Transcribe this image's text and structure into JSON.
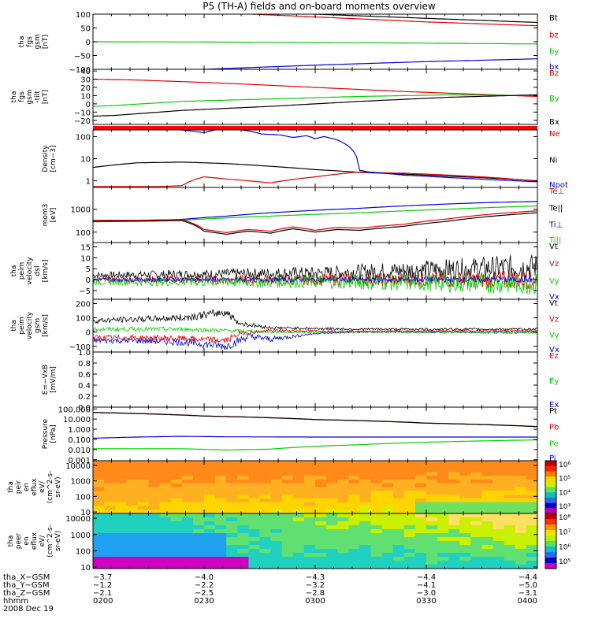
{
  "title": "P5 (TH-A) fields and on-board moments overview",
  "colors": {
    "black": "#000000",
    "red": "#e00000",
    "green": "#00d000",
    "blue": "#0000d8"
  },
  "chart_data": [
    {
      "type": "line",
      "id": "p1",
      "ylabels": [
        "tha",
        "fgs",
        "gsm",
        "[nT]"
      ],
      "ylim": [
        -100,
        100
      ],
      "yticks": [
        "100",
        "50",
        "0",
        "−50",
        "−100"
      ],
      "yvals": [
        100,
        50,
        0,
        -50,
        -100
      ],
      "legend": [
        "Bt",
        "bz",
        "by",
        "bx"
      ],
      "legend_colors": [
        "#000000",
        "#e00000",
        "#00d000",
        "#0000d8"
      ],
      "series": [
        {
          "name": "Bt",
          "color": "#000000",
          "x": [
            0,
            0.25,
            0.5,
            0.75,
            1
          ],
          "y": [
            135,
            118,
            100,
            85,
            70
          ]
        },
        {
          "name": "bz",
          "color": "#e00000",
          "x": [
            0,
            0.25,
            0.5,
            0.75,
            1
          ],
          "y": [
            125,
            108,
            90,
            72,
            58
          ]
        },
        {
          "name": "by",
          "color": "#00d000",
          "x": [
            0,
            0.25,
            0.5,
            0.75,
            1
          ],
          "y": [
            0,
            -1,
            -3,
            -5,
            -8
          ]
        },
        {
          "name": "bx",
          "color": "#0000d8",
          "x": [
            0,
            0.25,
            0.5,
            0.75,
            1
          ],
          "y": [
            -125,
            -100,
            -85,
            -72,
            -62
          ]
        }
      ]
    },
    {
      "type": "line",
      "id": "p2",
      "ylabels": [
        "tha",
        "fgs",
        "gsm",
        "-tilt",
        "[nT]"
      ],
      "ylim": [
        -25,
        42
      ],
      "yticks": [
        "40",
        "30",
        "20",
        "10",
        "0",
        "−10",
        "−20"
      ],
      "yvals": [
        40,
        30,
        20,
        10,
        0,
        -10,
        -20
      ],
      "legend": [
        "Bz",
        "By",
        "Bx"
      ],
      "legend_colors": [
        "#e00000",
        "#00d000",
        "#000000"
      ],
      "series": [
        {
          "name": "Bz",
          "color": "#e00000",
          "x": [
            0,
            0.1,
            0.3,
            0.5,
            0.7,
            0.9,
            1
          ],
          "y": [
            30,
            29,
            25,
            20,
            15,
            11,
            9
          ]
        },
        {
          "name": "By",
          "color": "#00d000",
          "x": [
            0,
            0.05,
            0.2,
            0.4,
            0.6,
            0.8,
            1
          ],
          "y": [
            -3,
            -2,
            3,
            6,
            9,
            11,
            10
          ]
        },
        {
          "name": "Bx",
          "color": "#000000",
          "x": [
            0,
            0.05,
            0.2,
            0.4,
            0.6,
            0.8,
            1
          ],
          "y": [
            -15,
            -14,
            -8,
            -3,
            3,
            8,
            11
          ]
        }
      ]
    },
    {
      "type": "line",
      "id": "p3",
      "log": true,
      "ylabels": [
        "Density",
        "[cm−3]"
      ],
      "ylim": [
        0.5,
        200
      ],
      "yticks": [
        "100",
        "10",
        "1"
      ],
      "yvals": [
        100,
        10,
        1
      ],
      "legend": [
        "Ne",
        "Ni",
        "Npot"
      ],
      "legend_colors": [
        "#e00000",
        "#000000",
        "#0000d8"
      ],
      "series": [
        {
          "name": "Ni",
          "color": "#000000",
          "x": [
            0,
            0.1,
            0.2,
            0.3,
            0.4,
            0.5,
            0.6,
            0.7,
            0.8,
            0.9,
            1
          ],
          "y": [
            4,
            6.5,
            7,
            6,
            4.5,
            3.2,
            2.4,
            2,
            1.6,
            1.3,
            1
          ]
        },
        {
          "name": "Ne",
          "color": "#e00000",
          "x": [
            0,
            0.15,
            0.2,
            0.25,
            0.3,
            0.4,
            0.5,
            0.6,
            0.65,
            0.7,
            0.8,
            0.9,
            1
          ],
          "y": [
            0.55,
            0.55,
            0.6,
            1.5,
            1.2,
            0.8,
            1.5,
            2.5,
            2.3,
            2.2,
            1.8,
            1.4,
            0.95
          ]
        },
        {
          "name": "Npot",
          "color": "#0000d8",
          "x": [
            0.2,
            0.25,
            0.3,
            0.35,
            0.38,
            0.42,
            0.45,
            0.48,
            0.5,
            0.52,
            0.55,
            0.6,
            0.62,
            0.7,
            0.8,
            0.9,
            1
          ],
          "y": [
            200,
            150,
            250,
            180,
            130,
            120,
            90,
            110,
            80,
            100,
            70,
            3,
            2.5,
            1.8,
            1.4,
            1.1,
            0.9
          ]
        }
      ]
    },
    {
      "type": "line",
      "id": "p4",
      "log": true,
      "ylabels": [
        "mom3",
        "[eV]"
      ],
      "ylim": [
        35,
        9000
      ],
      "yticks": [
        "1000",
        "100"
      ],
      "yvals": [
        1000,
        100
      ],
      "legend": [
        "Te⊥",
        "Te||",
        "Ti⊥",
        "Ti||"
      ],
      "legend_colors": [
        "#e00000",
        "#000000",
        "#0000d8",
        "#00d000"
      ],
      "series": [
        {
          "name": "Ti⊥",
          "color": "#0000d8",
          "x": [
            0,
            0.1,
            0.2,
            0.3,
            0.4,
            0.5,
            0.6,
            0.7,
            0.8,
            0.9,
            1
          ],
          "y": [
            300,
            320,
            360,
            500,
            700,
            900,
            1100,
            1400,
            1700,
            2000,
            2200
          ]
        },
        {
          "name": "Ti||",
          "color": "#00d000",
          "x": [
            0,
            0.1,
            0.2,
            0.3,
            0.4,
            0.5,
            0.6,
            0.7,
            0.8,
            0.9,
            1
          ],
          "y": [
            280,
            300,
            330,
            420,
            500,
            600,
            700,
            850,
            1000,
            1200,
            1400
          ]
        },
        {
          "name": "Te||",
          "color": "#000000",
          "x": [
            0,
            0.1,
            0.2,
            0.25,
            0.3,
            0.35,
            0.4,
            0.45,
            0.5,
            0.55,
            0.6,
            0.7,
            0.8,
            0.9,
            1
          ],
          "y": [
            300,
            300,
            320,
            110,
            80,
            110,
            90,
            140,
            100,
            130,
            120,
            180,
            300,
            500,
            700
          ]
        },
        {
          "name": "Te⊥",
          "color": "#e00000",
          "x": [
            0,
            0.1,
            0.2,
            0.25,
            0.3,
            0.35,
            0.4,
            0.45,
            0.5,
            0.55,
            0.6,
            0.7,
            0.8,
            0.9,
            1
          ],
          "y": [
            330,
            330,
            350,
            130,
            95,
            130,
            110,
            170,
            120,
            160,
            150,
            220,
            380,
            620,
            850
          ]
        }
      ]
    },
    {
      "type": "line",
      "id": "p5",
      "noisy": true,
      "ylabels": [
        "tha",
        "peim",
        "velocity",
        "dsl",
        "[km/s]"
      ],
      "ylim": [
        -9,
        17
      ],
      "yticks": [
        "15",
        "10",
        "5",
        "0",
        "−5"
      ],
      "yvals": [
        15,
        10,
        5,
        0,
        -5
      ],
      "legend": [
        "Vt",
        "Vz",
        "Vy",
        "Vx"
      ],
      "legend_colors": [
        "#000000",
        "#e00000",
        "#00d000",
        "#0000d8"
      ],
      "series": [
        {
          "name": "Vt",
          "color": "#000000",
          "x": [
            0,
            0.5,
            1
          ],
          "y": [
            2,
            3,
            6
          ],
          "noise": [
            1.5,
            3,
            6
          ]
        },
        {
          "name": "Vz",
          "color": "#e00000",
          "x": [
            0,
            0.5,
            1
          ],
          "y": [
            0,
            0,
            0
          ],
          "noise": [
            1.2,
            2.5,
            4.5
          ]
        },
        {
          "name": "Vy",
          "color": "#00d000",
          "x": [
            0,
            0.5,
            1
          ],
          "y": [
            -1,
            -1,
            -2
          ],
          "noise": [
            1.5,
            3,
            5
          ]
        },
        {
          "name": "Vx",
          "color": "#0000d8",
          "x": [
            0,
            0.5,
            1
          ],
          "y": [
            0,
            0,
            0
          ],
          "noise": [
            0.8,
            1,
            1.5
          ]
        }
      ]
    },
    {
      "type": "line",
      "id": "p6",
      "noisy": true,
      "ylabels": [
        "tha",
        "peim",
        "velocity",
        "gsm",
        "[km/s]"
      ],
      "ylim": [
        -140,
        230
      ],
      "yticks": [
        "200",
        "100",
        "0",
        "−100"
      ],
      "yvals": [
        200,
        100,
        0,
        -100
      ],
      "legend": [
        "Vt",
        "Vz",
        "Vy",
        "Vx"
      ],
      "legend_colors": [
        "#000000",
        "#e00000",
        "#00d000",
        "#0000d8"
      ],
      "series": [
        {
          "name": "Vx",
          "color": "#0000d8",
          "x": [
            0,
            0.1,
            0.2,
            0.3,
            0.35,
            0.4,
            0.5,
            0.6,
            1
          ],
          "y": [
            -60,
            -60,
            -70,
            -100,
            -30,
            -50,
            -10,
            0,
            0
          ],
          "noise": [
            20,
            20,
            25,
            30,
            25,
            20,
            5,
            5,
            5
          ]
        },
        {
          "name": "Vy",
          "color": "#00d000",
          "x": [
            0,
            0.2,
            0.3,
            0.4,
            0.6,
            1
          ],
          "y": [
            20,
            20,
            10,
            0,
            0,
            -5
          ],
          "noise": [
            15,
            15,
            15,
            8,
            5,
            8
          ]
        },
        {
          "name": "Vz",
          "color": "#e00000",
          "x": [
            0,
            0.1,
            0.2,
            0.3,
            0.33,
            0.4,
            0.6,
            1
          ],
          "y": [
            -40,
            -40,
            -45,
            -60,
            -10,
            10,
            5,
            10
          ],
          "noise": [
            20,
            20,
            20,
            25,
            15,
            10,
            6,
            6
          ]
        },
        {
          "name": "Vt",
          "color": "#000000",
          "x": [
            0,
            0.1,
            0.2,
            0.3,
            0.33,
            0.4,
            0.6,
            0.8,
            1
          ],
          "y": [
            80,
            90,
            100,
            140,
            60,
            30,
            20,
            20,
            20
          ],
          "noise": [
            20,
            20,
            25,
            30,
            20,
            10,
            8,
            8,
            8
          ]
        }
      ]
    },
    {
      "type": "line",
      "id": "p7",
      "ylabels": [
        "E=−VxB",
        "[mV/m]"
      ],
      "ylim": [
        0,
        1
      ],
      "yticks": [
        "1.0",
        "0.8",
        "0.6",
        "0.4",
        "0.2",
        "0.0"
      ],
      "yvals": [
        1,
        0.8,
        0.6,
        0.4,
        0.2,
        0
      ],
      "legend": [
        "Ez",
        "Ey",
        "Ex"
      ],
      "legend_colors": [
        "#e00000",
        "#00d000",
        "#0000d8"
      ],
      "series": []
    },
    {
      "type": "line",
      "id": "p8",
      "log": true,
      "ylabels": [
        "Pressure",
        "[nPa]"
      ],
      "ylim": [
        0.0008,
        150
      ],
      "yticks": [
        "100.000",
        "10.000",
        "1.000",
        "0.100",
        "0.010",
        "0.001"
      ],
      "yvals": [
        100,
        10,
        1,
        0.1,
        0.01,
        0.001
      ],
      "legend": [
        "Pt",
        "Pb",
        "Pe",
        "Pi"
      ],
      "legend_colors": [
        "#000000",
        "#e00000",
        "#00d000",
        "#0000d8"
      ],
      "series": [
        {
          "name": "Pi",
          "color": "#0000d8",
          "x": [
            0,
            0.1,
            0.2,
            0.3,
            0.5,
            0.7,
            0.9,
            1
          ],
          "y": [
            0.13,
            0.17,
            0.2,
            0.18,
            0.17,
            0.17,
            0.17,
            0.17
          ]
        },
        {
          "name": "Pe",
          "color": "#00d000",
          "x": [
            0,
            0.2,
            0.3,
            0.4,
            0.6,
            0.8,
            1
          ],
          "y": [
            0.012,
            0.012,
            0.009,
            0.011,
            0.03,
            0.06,
            0.09
          ]
        },
        {
          "name": "Pb",
          "color": "#e00000",
          "x": [
            0,
            0.25,
            0.5,
            0.75,
            1
          ],
          "y": [
            45,
            20,
            9,
            4,
            1.8
          ]
        },
        {
          "name": "Pt",
          "color": "#000000",
          "x": [
            0,
            0.25,
            0.5,
            0.75,
            1
          ],
          "y": [
            45,
            20,
            9,
            4,
            1.8
          ]
        }
      ]
    },
    {
      "type": "heatmap",
      "id": "p9",
      "log": true,
      "ylabels": [
        "tha",
        "peir",
        "en",
        "eflux",
        "eV/",
        "(cm^2-s-",
        "sr-eV)"
      ],
      "ylim": [
        8,
        20000
      ],
      "yticks": [
        "10000",
        "1000",
        "100",
        "10"
      ],
      "yvals": [
        10000,
        1000,
        100,
        10
      ],
      "colorbar_ticks": [
        "10⁶",
        "10⁵",
        "10⁴",
        "10³"
      ]
    },
    {
      "type": "heatmap",
      "id": "p10",
      "log": true,
      "ylabels": [
        "tha",
        "peer",
        "en",
        "eflux",
        "eV/",
        "(cm^2-s-",
        "sr-eV)"
      ],
      "ylim": [
        8,
        20000
      ],
      "yticks": [
        "10000",
        "1000",
        "100",
        "10"
      ],
      "yvals": [
        10000,
        1000,
        100,
        10
      ],
      "colorbar_ticks": [
        "10⁸",
        "10⁷",
        "10⁶",
        "10⁵"
      ]
    }
  ],
  "xaxis": {
    "ticks_x": [
      0,
      0.25,
      0.5,
      0.75,
      1
    ],
    "rows": [
      {
        "label": "tha_X−GSM",
        "values": [
          "−3.7",
          "−4.0",
          "−4.3",
          "−4.4",
          "−4.4"
        ]
      },
      {
        "label": "tha_Y−GSM",
        "values": [
          "−1.2",
          "−2.2",
          "−3.2",
          "−4.1",
          "−5.0"
        ]
      },
      {
        "label": "tha_Z−GSM",
        "values": [
          "−2.1",
          "−2.5",
          "−2.8",
          "−3.0",
          "−3.1"
        ]
      },
      {
        "label": "hhmm",
        "values": [
          "0200",
          "0230",
          "0300",
          "0330",
          "0400"
        ]
      }
    ],
    "date": "2008 Dec 19"
  }
}
